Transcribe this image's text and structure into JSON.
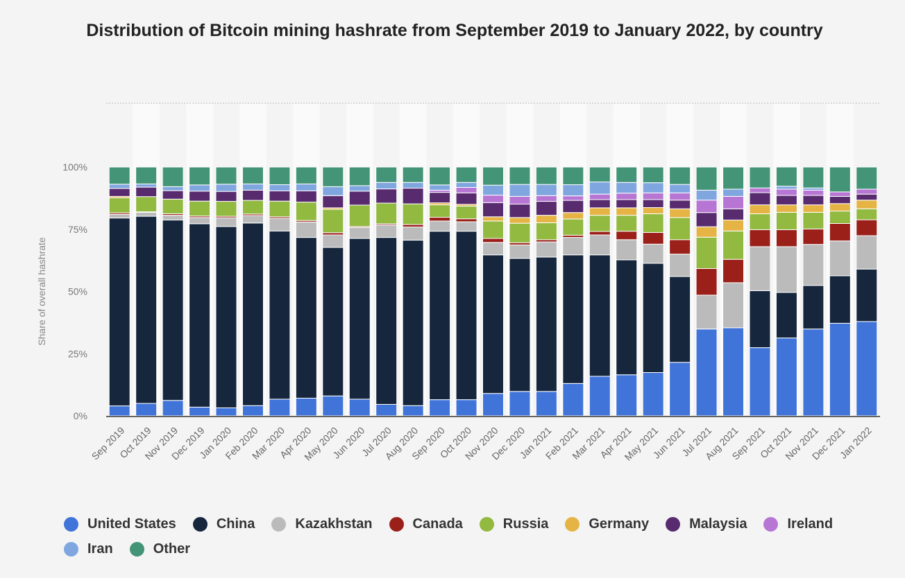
{
  "chart_data": {
    "type": "bar",
    "stacked": true,
    "title": "Distribution of Bitcoin mining hashrate from September 2019 to January 2022, by country",
    "ylabel": "Share of overall hashrate",
    "xlabel": "",
    "ylim": [
      0,
      100
    ],
    "yticks": [
      "0%",
      "25%",
      "50%",
      "75%",
      "100%"
    ],
    "grid": false,
    "legend_position": "bottom",
    "categories": [
      "Sep 2019",
      "Oct 2019",
      "Nov 2019",
      "Dec 2019",
      "Jan 2020",
      "Feb 2020",
      "Mar 2020",
      "Apr 2020",
      "May 2020",
      "Jun 2020",
      "Jul 2020",
      "Aug 2020",
      "Sep 2020",
      "Oct 2020",
      "Nov 2020",
      "Dec 2020",
      "Jan 2021",
      "Feb 2021",
      "Mar 2021",
      "Apr 2021",
      "May 2021",
      "Jun 2021",
      "Jul 2021",
      "Aug 2021",
      "Sep 2021",
      "Oct 2021",
      "Nov 2021",
      "Dec 2021",
      "Jan 2022"
    ],
    "series": [
      {
        "name": "United States",
        "color": "#4174d9",
        "values": [
          4.0,
          5.0,
          6.2,
          3.5,
          3.2,
          4.1,
          6.7,
          7.1,
          8.0,
          6.7,
          4.6,
          4.1,
          6.5,
          6.5,
          9.0,
          9.8,
          9.8,
          13.0,
          15.9,
          16.5,
          17.4,
          21.5,
          34.9,
          35.4,
          27.4,
          31.3,
          34.9,
          37.2,
          37.9
        ]
      },
      {
        "name": "China",
        "color": "#15263d",
        "values": [
          75.5,
          75.2,
          72.5,
          73.7,
          72.9,
          73.4,
          67.6,
          64.6,
          59.7,
          64.6,
          67.1,
          66.5,
          67.7,
          67.7,
          55.7,
          53.5,
          54.0,
          51.7,
          48.8,
          46.2,
          43.9,
          34.5,
          0,
          0,
          22.9,
          18.3,
          17.5,
          19.1,
          21.1
        ]
      },
      {
        "name": "Kazakhstan",
        "color": "#bbbbbb",
        "values": [
          1.5,
          1.6,
          1.9,
          2.5,
          3.5,
          3.0,
          5.1,
          6.2,
          5.0,
          4.4,
          5.0,
          5.3,
          4.1,
          3.8,
          5.0,
          5.4,
          6.1,
          7.0,
          8.0,
          8.1,
          7.7,
          9.0,
          13.6,
          18.1,
          17.7,
          18.4,
          16.5,
          14.0,
          13.4
        ]
      },
      {
        "name": "Canada",
        "color": "#9a2019",
        "values": [
          0.6,
          0.2,
          0.6,
          0.6,
          0.6,
          0.6,
          0.6,
          0.6,
          0.9,
          0.4,
          0.5,
          1.0,
          1.5,
          1.2,
          1.6,
          0.9,
          0.9,
          0.9,
          1.4,
          3.4,
          4.7,
          5.8,
          10.7,
          9.4,
          6.8,
          6.8,
          6.2,
          7.0,
          6.4
        ]
      },
      {
        "name": "Russia",
        "color": "#92b940",
        "values": [
          6.0,
          6.1,
          5.9,
          6.0,
          6.0,
          5.5,
          6.3,
          7.4,
          9.4,
          8.6,
          8.3,
          8.3,
          5.0,
          5.1,
          7.0,
          7.8,
          6.8,
          6.5,
          6.5,
          6.4,
          7.5,
          8.9,
          12.6,
          11.4,
          6.4,
          7.0,
          6.7,
          5.0,
          4.4
        ]
      },
      {
        "name": "Germany",
        "color": "#e5b445",
        "values": [
          0.6,
          0,
          0,
          0,
          0,
          0,
          0,
          0,
          0.6,
          0,
          0,
          0,
          0.8,
          0.7,
          1.7,
          2.3,
          3.0,
          2.6,
          3.0,
          3.0,
          2.5,
          3.5,
          4.2,
          4.4,
          3.6,
          3.0,
          3.0,
          3.0,
          3.5
        ]
      },
      {
        "name": "Malaysia",
        "color": "#582b6f",
        "values": [
          3.2,
          3.8,
          3.4,
          4.0,
          4.0,
          4.1,
          4.1,
          4.5,
          4.9,
          5.6,
          5.7,
          6.3,
          4.2,
          4.6,
          5.7,
          5.4,
          5.6,
          4.9,
          3.3,
          3.3,
          3.2,
          3.5,
          5.7,
          4.5,
          4.9,
          3.8,
          3.8,
          2.9,
          2.4
        ]
      },
      {
        "name": "Ireland",
        "color": "#b776d4",
        "values": [
          0,
          0,
          0,
          0,
          0,
          0,
          0,
          0,
          0,
          0,
          0,
          0,
          0.9,
          2.2,
          3.0,
          3.1,
          2.3,
          1.8,
          2.2,
          2.6,
          2.7,
          2.9,
          5.0,
          5.0,
          1.9,
          2.5,
          2.1,
          1.8,
          2.0
        ]
      },
      {
        "name": "Iran",
        "color": "#80a6e0",
        "values": [
          1.7,
          1.3,
          1.6,
          2.5,
          2.9,
          2.5,
          2.5,
          2.8,
          3.6,
          2.2,
          2.6,
          2.3,
          2.1,
          2.0,
          4.0,
          4.8,
          4.5,
          4.5,
          4.9,
          4.3,
          4.1,
          3.4,
          4.0,
          2.9,
          0,
          1.2,
          0.9,
          0,
          0
        ]
      },
      {
        "name": "Other",
        "color": "#449477",
        "values": [
          6.9,
          6.8,
          7.9,
          7.2,
          6.9,
          6.8,
          7.1,
          6.8,
          7.9,
          7.5,
          6.2,
          6.2,
          7.2,
          6.2,
          7.3,
          7.0,
          7.0,
          7.1,
          6.0,
          6.2,
          6.3,
          7.0,
          9.3,
          8.9,
          8.4,
          7.7,
          8.4,
          10.0,
          8.9
        ]
      }
    ]
  }
}
